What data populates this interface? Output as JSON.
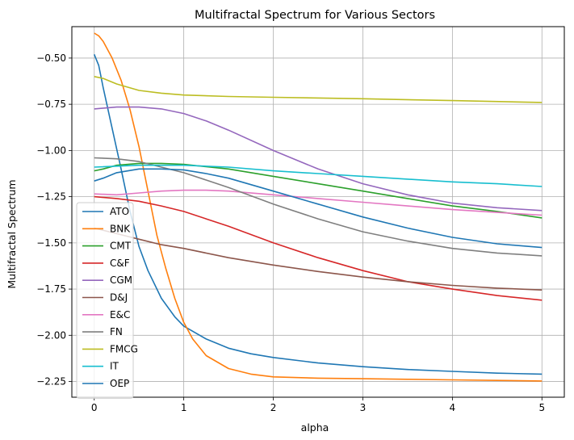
{
  "chart_data": {
    "type": "line",
    "title": "Multifractal Spectrum for Various Sectors",
    "xlabel": "alpha",
    "ylabel": "Multifractal Spectrum",
    "xlim": [
      -0.25,
      5.25
    ],
    "ylim": [
      -2.335,
      -0.33
    ],
    "xticks": [
      0,
      1,
      2,
      3,
      4,
      5
    ],
    "yticks": [
      -2.25,
      -2.0,
      -1.75,
      -1.5,
      -1.25,
      -1.0,
      -0.75,
      -0.5
    ],
    "xtick_labels": [
      "0",
      "1",
      "2",
      "3",
      "4",
      "5"
    ],
    "ytick_labels": [
      "−2.25",
      "−2.00",
      "−1.75",
      "−1.50",
      "−1.25",
      "−1.00",
      "−0.75",
      "−0.50"
    ],
    "grid": true,
    "legend_position": "lower-left",
    "series": [
      {
        "name": "ATO",
        "color": "#1f77b4",
        "x": [
          0,
          0.05,
          0.1,
          0.2,
          0.3,
          0.4,
          0.5,
          0.6,
          0.75,
          0.9,
          1.0,
          1.25,
          1.5,
          1.75,
          2,
          2.5,
          3,
          3.5,
          4,
          4.5,
          5
        ],
        "y": [
          -0.48,
          -0.54,
          -0.66,
          -0.88,
          -1.1,
          -1.33,
          -1.52,
          -1.65,
          -1.8,
          -1.9,
          -1.95,
          -2.02,
          -2.07,
          -2.1,
          -2.12,
          -2.15,
          -2.17,
          -2.185,
          -2.195,
          -2.205,
          -2.21
        ]
      },
      {
        "name": "BNK",
        "color": "#ff7f0e",
        "x": [
          0,
          0.05,
          0.1,
          0.2,
          0.3,
          0.4,
          0.5,
          0.6,
          0.7,
          0.8,
          0.9,
          1.0,
          1.1,
          1.25,
          1.5,
          1.75,
          2,
          2.5,
          3,
          3.5,
          4,
          4.5,
          5
        ],
        "y": [
          -0.365,
          -0.38,
          -0.41,
          -0.5,
          -0.62,
          -0.78,
          -0.98,
          -1.22,
          -1.46,
          -1.64,
          -1.8,
          -1.93,
          -2.02,
          -2.11,
          -2.18,
          -2.21,
          -2.225,
          -2.232,
          -2.235,
          -2.238,
          -2.241,
          -2.244,
          -2.247
        ]
      },
      {
        "name": "CMT",
        "color": "#2ca02c",
        "x": [
          0,
          0.1,
          0.25,
          0.5,
          0.75,
          1.0,
          1.5,
          2,
          2.5,
          3,
          3.5,
          4,
          4.5,
          5
        ],
        "y": [
          -1.11,
          -1.1,
          -1.08,
          -1.07,
          -1.07,
          -1.075,
          -1.1,
          -1.14,
          -1.18,
          -1.22,
          -1.26,
          -1.3,
          -1.33,
          -1.365
        ]
      },
      {
        "name": "C&F",
        "color": "#d62728",
        "x": [
          0,
          0.25,
          0.5,
          0.75,
          1.0,
          1.25,
          1.5,
          2,
          2.5,
          3,
          3.5,
          4,
          4.5,
          5
        ],
        "y": [
          -1.25,
          -1.26,
          -1.275,
          -1.3,
          -1.33,
          -1.37,
          -1.41,
          -1.5,
          -1.58,
          -1.65,
          -1.71,
          -1.75,
          -1.785,
          -1.81
        ]
      },
      {
        "name": "CGM",
        "color": "#9467bd",
        "x": [
          0,
          0.25,
          0.5,
          0.75,
          1.0,
          1.25,
          1.5,
          2,
          2.5,
          3,
          3.5,
          4,
          4.5,
          5
        ],
        "y": [
          -0.775,
          -0.765,
          -0.765,
          -0.775,
          -0.8,
          -0.84,
          -0.89,
          -1.0,
          -1.1,
          -1.18,
          -1.24,
          -1.285,
          -1.31,
          -1.325
        ]
      },
      {
        "name": "D&J",
        "color": "#8c564b",
        "x": [
          0,
          0.25,
          0.5,
          0.75,
          1.0,
          1.5,
          2,
          2.5,
          3,
          3.5,
          4,
          4.5,
          5
        ],
        "y": [
          -1.42,
          -1.45,
          -1.48,
          -1.51,
          -1.53,
          -1.58,
          -1.62,
          -1.655,
          -1.685,
          -1.71,
          -1.73,
          -1.745,
          -1.755
        ]
      },
      {
        "name": "E&C",
        "color": "#e377c2",
        "x": [
          0,
          0.25,
          0.5,
          0.75,
          1.0,
          1.25,
          1.5,
          2,
          2.5,
          3,
          3.5,
          4,
          4.5,
          5
        ],
        "y": [
          -1.235,
          -1.24,
          -1.23,
          -1.22,
          -1.215,
          -1.215,
          -1.22,
          -1.24,
          -1.26,
          -1.28,
          -1.3,
          -1.32,
          -1.335,
          -1.35
        ]
      },
      {
        "name": "FN",
        "color": "#7f7f7f",
        "x": [
          0,
          0.25,
          0.5,
          0.75,
          1.0,
          1.25,
          1.5,
          2,
          2.5,
          3,
          3.5,
          4,
          4.5,
          5
        ],
        "y": [
          -1.04,
          -1.045,
          -1.06,
          -1.09,
          -1.12,
          -1.16,
          -1.2,
          -1.29,
          -1.37,
          -1.44,
          -1.49,
          -1.53,
          -1.555,
          -1.57
        ]
      },
      {
        "name": "FMCG",
        "color": "#bcbd22",
        "x": [
          0,
          0.1,
          0.25,
          0.5,
          0.75,
          1.0,
          1.5,
          2,
          3,
          4,
          5
        ],
        "y": [
          -0.6,
          -0.61,
          -0.64,
          -0.675,
          -0.69,
          -0.7,
          -0.708,
          -0.712,
          -0.72,
          -0.73,
          -0.74
        ]
      },
      {
        "name": "IT",
        "color": "#17becf",
        "x": [
          0,
          0.5,
          1.0,
          1.5,
          2,
          2.5,
          3,
          3.5,
          4,
          4.5,
          5
        ],
        "y": [
          -1.09,
          -1.08,
          -1.08,
          -1.09,
          -1.11,
          -1.125,
          -1.14,
          -1.155,
          -1.17,
          -1.18,
          -1.195
        ]
      },
      {
        "name": "OEP",
        "color": "#1f77b4",
        "x": [
          0,
          0.1,
          0.25,
          0.5,
          0.75,
          1.0,
          1.25,
          1.5,
          2,
          2.5,
          3,
          3.5,
          4,
          4.5,
          5
        ],
        "y": [
          -1.165,
          -1.15,
          -1.12,
          -1.1,
          -1.1,
          -1.105,
          -1.125,
          -1.15,
          -1.22,
          -1.29,
          -1.36,
          -1.42,
          -1.47,
          -1.505,
          -1.525
        ]
      }
    ]
  }
}
